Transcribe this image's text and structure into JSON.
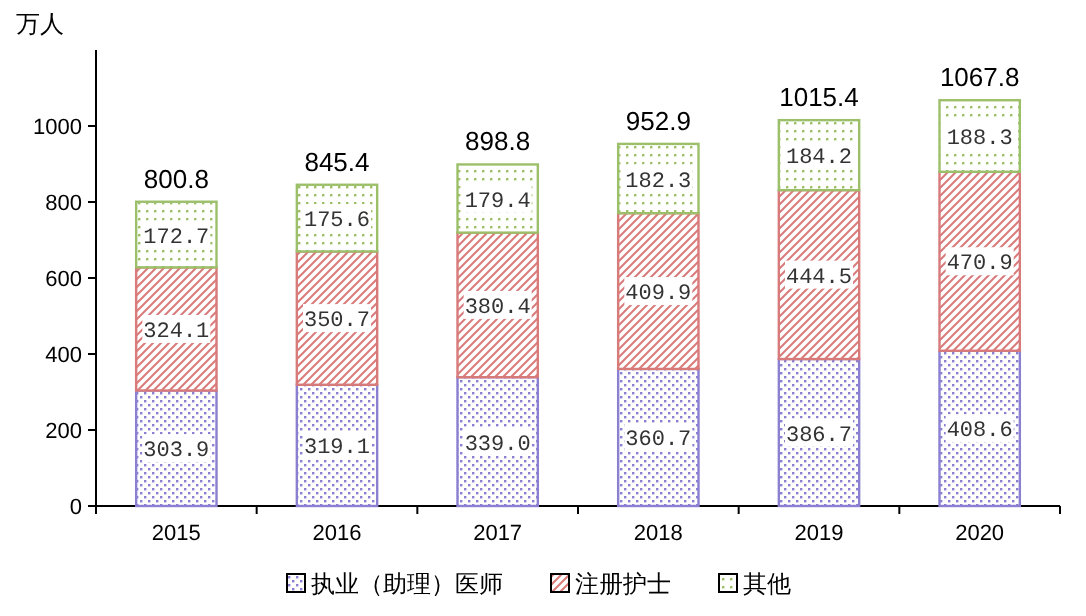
{
  "chart_data": {
    "type": "bar",
    "stacked": true,
    "ylabel": "万人",
    "categories": [
      "2015",
      "2016",
      "2017",
      "2018",
      "2019",
      "2020"
    ],
    "series": [
      {
        "name": "执业（助理）医师",
        "color": "#8a7fd0",
        "values": [
          303.9,
          319.1,
          339.0,
          360.7,
          386.7,
          408.6
        ],
        "value_labels": [
          "303.9",
          "319.1",
          "339.0",
          "360.7",
          "386.7",
          "408.6"
        ]
      },
      {
        "name": "注册护士",
        "color": "#d97a7a",
        "values": [
          324.1,
          350.7,
          380.4,
          409.9,
          444.5,
          470.9
        ],
        "value_labels": [
          "324.1",
          "350.7",
          "380.4",
          "409.9",
          "444.5",
          "470.9"
        ]
      },
      {
        "name": "其他",
        "color": "#9cbf6a",
        "values": [
          172.7,
          175.6,
          179.4,
          182.3,
          184.2,
          188.3
        ],
        "value_labels": [
          "172.7",
          "175.6",
          "179.4",
          "182.3",
          "184.2",
          "188.3"
        ]
      }
    ],
    "totals": [
      "800.8",
      "845.4",
      "898.8",
      "952.9",
      "1015.4",
      "1067.8"
    ],
    "ylim": [
      0,
      1200
    ],
    "yticks": [
      0,
      200,
      400,
      600,
      800,
      1000
    ],
    "grid": false,
    "legend": "bottom"
  }
}
